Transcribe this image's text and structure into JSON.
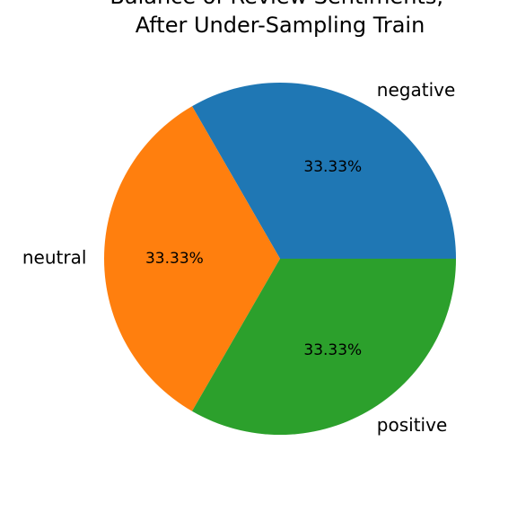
{
  "chart_data": {
    "type": "pie",
    "title": "Balance of Review Sentiments,\nAfter Under-Sampling Train",
    "categories": [
      "negative",
      "neutral",
      "positive"
    ],
    "values": [
      33.33,
      33.33,
      33.33
    ],
    "value_labels": [
      "33.33%",
      "33.33%",
      "33.33%"
    ],
    "colors": [
      "#1f77b4",
      "#ff7f0e",
      "#2ca02c"
    ],
    "start_angle_deg": 0,
    "direction": "counterclockwise",
    "legend": "none"
  }
}
